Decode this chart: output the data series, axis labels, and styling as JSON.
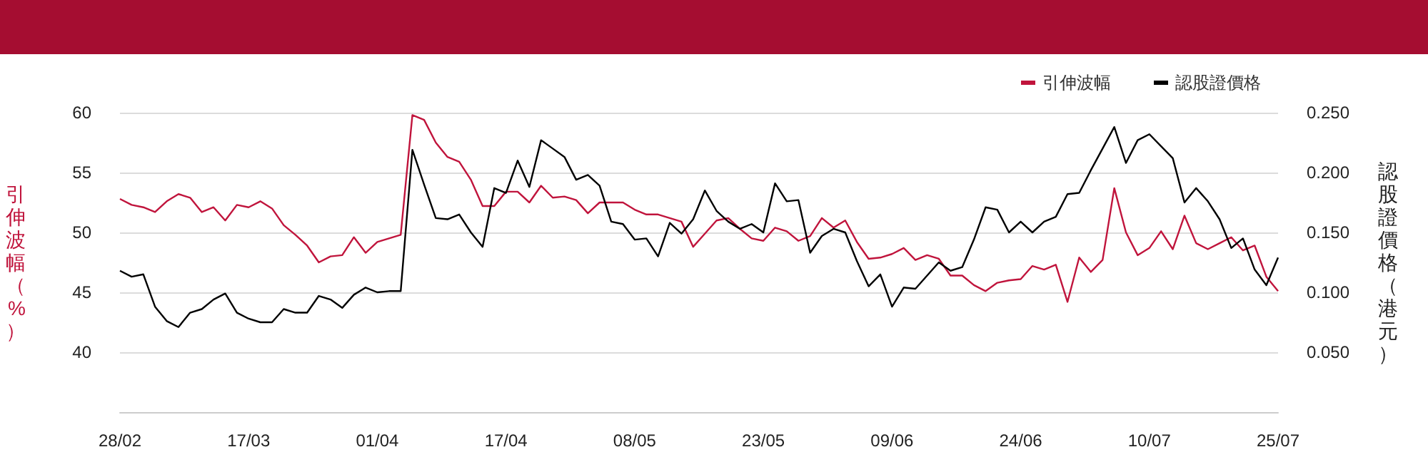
{
  "chart_data": {
    "type": "line",
    "ylabel": "引伸波幅（%）",
    "y2label": "認股證價格（港元）",
    "categories": [
      "28/02",
      null,
      null,
      null,
      null,
      null,
      null,
      null,
      null,
      null,
      null,
      "17/03",
      null,
      null,
      null,
      null,
      null,
      null,
      null,
      null,
      null,
      null,
      "01/04",
      null,
      null,
      null,
      null,
      null,
      null,
      null,
      null,
      null,
      null,
      "17/04",
      null,
      null,
      null,
      null,
      null,
      null,
      null,
      null,
      null,
      null,
      "08/05",
      null,
      null,
      null,
      null,
      null,
      null,
      null,
      null,
      null,
      null,
      "23/05",
      null,
      null,
      null,
      null,
      null,
      null,
      null,
      null,
      null,
      null,
      "09/06",
      null,
      null,
      null,
      null,
      null,
      null,
      null,
      null,
      null,
      null,
      "24/06",
      null,
      null,
      null,
      null,
      null,
      null,
      null,
      null,
      null,
      null,
      "10/07",
      null,
      null,
      null,
      null,
      null,
      null,
      null,
      null,
      null,
      null,
      "25/07"
    ],
    "series": [
      {
        "name": "引伸波幅",
        "color": "#c0143c",
        "values": [
          52.8,
          52.3,
          52.1,
          51.7,
          52.6,
          53.2,
          52.9,
          51.7,
          52.1,
          51.0,
          52.3,
          52.1,
          52.6,
          52.0,
          50.6,
          49.8,
          48.9,
          47.5,
          48.0,
          48.1,
          49.6,
          48.3,
          49.2,
          49.5,
          49.8,
          59.8,
          59.4,
          57.5,
          56.3,
          55.9,
          54.4,
          52.2,
          52.2,
          53.4,
          53.4,
          52.5,
          53.9,
          52.9,
          53.0,
          52.7,
          51.6,
          52.5,
          52.5,
          52.5,
          51.9,
          51.5,
          51.5,
          51.2,
          50.9,
          48.8,
          49.9,
          51.0,
          51.2,
          50.3,
          49.5,
          49.3,
          50.4,
          50.1,
          49.3,
          49.7,
          51.2,
          50.4,
          51.0,
          49.2,
          47.8,
          47.9,
          48.2,
          48.7,
          47.7,
          48.1,
          47.8,
          46.4,
          46.4,
          45.6,
          45.1,
          45.8,
          46.0,
          46.1,
          47.2,
          46.9,
          47.3,
          44.2,
          47.9,
          46.7,
          47.7,
          53.7,
          50.0,
          48.1,
          48.7,
          50.1,
          48.6,
          51.4,
          49.1,
          48.6,
          49.1,
          49.6,
          48.5,
          48.9,
          46.3,
          45.1
        ]
      },
      {
        "name": "認股證價格",
        "color": "#000000",
        "axis": "y2",
        "values": [
          0.118,
          0.113,
          0.115,
          0.088,
          0.076,
          0.071,
          0.083,
          0.086,
          0.094,
          0.099,
          0.083,
          0.078,
          0.075,
          0.075,
          0.086,
          0.083,
          0.083,
          0.097,
          0.094,
          0.087,
          0.098,
          0.104,
          0.1,
          0.101,
          0.101,
          0.219,
          0.19,
          0.162,
          0.161,
          0.165,
          0.15,
          0.138,
          0.187,
          0.183,
          0.21,
          0.188,
          0.227,
          0.22,
          0.213,
          0.194,
          0.198,
          0.189,
          0.159,
          0.157,
          0.144,
          0.145,
          0.13,
          0.158,
          0.149,
          0.161,
          0.185,
          0.168,
          0.159,
          0.153,
          0.157,
          0.15,
          0.191,
          0.176,
          0.177,
          0.133,
          0.147,
          0.153,
          0.15,
          0.126,
          0.105,
          0.115,
          0.088,
          0.104,
          0.103,
          0.114,
          0.125,
          0.118,
          0.121,
          0.144,
          0.171,
          0.169,
          0.15,
          0.159,
          0.15,
          0.159,
          0.163,
          0.182,
          0.183,
          0.202,
          0.22,
          0.238,
          0.208,
          0.227,
          0.232,
          0.222,
          0.212,
          0.175,
          0.187,
          0.176,
          0.161,
          0.137,
          0.145,
          0.119,
          0.106,
          0.129
        ]
      }
    ],
    "ylim": [
      35,
      60
    ],
    "yticks": [
      40,
      45,
      50,
      55,
      60
    ],
    "y2lim": [
      0,
      0.25
    ],
    "y2ticks": [
      {
        "value": 0.05,
        "label": "0.050"
      },
      {
        "value": 0.1,
        "label": "0.100"
      },
      {
        "value": 0.15,
        "label": "0.150"
      },
      {
        "value": 0.2,
        "label": "0.200"
      },
      {
        "value": 0.25,
        "label": "0.250"
      }
    ],
    "grid": "y",
    "legend": "top right",
    "marker": "none",
    "line_style": "solid"
  }
}
